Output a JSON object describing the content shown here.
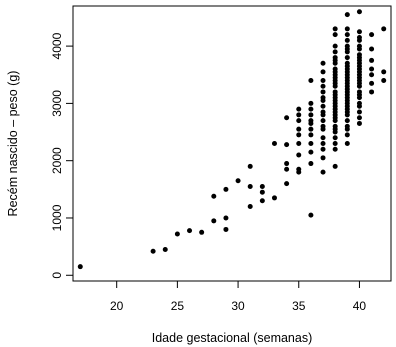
{
  "chart_data": {
    "type": "scatter",
    "title": "",
    "xlabel": "Idade gestacional (semanas)",
    "ylabel": "Recém nascido – peso (g)",
    "xlim": [
      16.4,
      42.6
    ],
    "ylim": [
      -100,
      4700
    ],
    "xticks": [
      20,
      25,
      30,
      35,
      40
    ],
    "yticks": [
      0,
      1000,
      2000,
      3000,
      4000
    ],
    "marker": "filled-circle",
    "marker_color": "#000000",
    "points": [
      [
        17,
        150
      ],
      [
        23,
        420
      ],
      [
        24,
        450
      ],
      [
        25,
        720
      ],
      [
        26,
        780
      ],
      [
        27,
        750
      ],
      [
        28,
        950
      ],
      [
        28,
        1380
      ],
      [
        29,
        800
      ],
      [
        29,
        1000
      ],
      [
        29,
        1500
      ],
      [
        30,
        1650
      ],
      [
        31,
        1200
      ],
      [
        31,
        1550
      ],
      [
        31,
        1900
      ],
      [
        32,
        1300
      ],
      [
        32,
        1450
      ],
      [
        32,
        1550
      ],
      [
        33,
        1350
      ],
      [
        33,
        2300
      ],
      [
        34,
        1950
      ],
      [
        34,
        1850
      ],
      [
        34,
        2280
      ],
      [
        34,
        2750
      ],
      [
        34,
        1600
      ],
      [
        35,
        1800
      ],
      [
        35,
        1850
      ],
      [
        35,
        2100
      ],
      [
        35,
        2300
      ],
      [
        35,
        2450
      ],
      [
        35,
        2550
      ],
      [
        35,
        2700
      ],
      [
        35,
        2800
      ],
      [
        35,
        2900
      ],
      [
        36,
        1050
      ],
      [
        36,
        1950
      ],
      [
        36,
        2150
      ],
      [
        36,
        2300
      ],
      [
        36,
        2450
      ],
      [
        36,
        2550
      ],
      [
        36,
        2650
      ],
      [
        36,
        2700
      ],
      [
        36,
        2800
      ],
      [
        36,
        2900
      ],
      [
        36,
        3000
      ],
      [
        36,
        3400
      ],
      [
        37,
        1800
      ],
      [
        37,
        2050
      ],
      [
        37,
        2200
      ],
      [
        37,
        2300
      ],
      [
        37,
        2400
      ],
      [
        37,
        2550
      ],
      [
        37,
        2600
      ],
      [
        37,
        2700
      ],
      [
        37,
        2800
      ],
      [
        37,
        2850
      ],
      [
        37,
        2950
      ],
      [
        37,
        3050
      ],
      [
        37,
        3100
      ],
      [
        37,
        3200
      ],
      [
        37,
        3300
      ],
      [
        37,
        3400
      ],
      [
        37,
        3550
      ],
      [
        37,
        3700
      ],
      [
        38,
        1900
      ],
      [
        38,
        2200
      ],
      [
        38,
        2300
      ],
      [
        38,
        2400
      ],
      [
        38,
        2500
      ],
      [
        38,
        2550
      ],
      [
        38,
        2600
      ],
      [
        38,
        2700
      ],
      [
        38,
        2750
      ],
      [
        38,
        2800
      ],
      [
        38,
        2850
      ],
      [
        38,
        2900
      ],
      [
        38,
        2950
      ],
      [
        38,
        3000
      ],
      [
        38,
        3050
      ],
      [
        38,
        3100
      ],
      [
        38,
        3150
      ],
      [
        38,
        3200
      ],
      [
        38,
        3300
      ],
      [
        38,
        3350
      ],
      [
        38,
        3400
      ],
      [
        38,
        3450
      ],
      [
        38,
        3500
      ],
      [
        38,
        3550
      ],
      [
        38,
        3600
      ],
      [
        38,
        3700
      ],
      [
        38,
        3750
      ],
      [
        38,
        3800
      ],
      [
        38,
        3900
      ],
      [
        38,
        4000
      ],
      [
        38,
        4200
      ],
      [
        38,
        4300
      ],
      [
        39,
        2300
      ],
      [
        39,
        2450
      ],
      [
        39,
        2550
      ],
      [
        39,
        2600
      ],
      [
        39,
        2700
      ],
      [
        39,
        2800
      ],
      [
        39,
        2850
      ],
      [
        39,
        2900
      ],
      [
        39,
        2950
      ],
      [
        39,
        3000
      ],
      [
        39,
        3050
      ],
      [
        39,
        3100
      ],
      [
        39,
        3150
      ],
      [
        39,
        3200
      ],
      [
        39,
        3250
      ],
      [
        39,
        3300
      ],
      [
        39,
        3350
      ],
      [
        39,
        3400
      ],
      [
        39,
        3450
      ],
      [
        39,
        3500
      ],
      [
        39,
        3550
      ],
      [
        39,
        3600
      ],
      [
        39,
        3650
      ],
      [
        39,
        3700
      ],
      [
        39,
        3800
      ],
      [
        39,
        3900
      ],
      [
        39,
        3950
      ],
      [
        39,
        4000
      ],
      [
        39,
        4100
      ],
      [
        39,
        4200
      ],
      [
        39,
        4300
      ],
      [
        39,
        4550
      ],
      [
        40,
        2650
      ],
      [
        40,
        2750
      ],
      [
        40,
        2850
      ],
      [
        40,
        2950
      ],
      [
        40,
        3000
      ],
      [
        40,
        3100
      ],
      [
        40,
        3150
      ],
      [
        40,
        3200
      ],
      [
        40,
        3300
      ],
      [
        40,
        3350
      ],
      [
        40,
        3400
      ],
      [
        40,
        3450
      ],
      [
        40,
        3500
      ],
      [
        40,
        3550
      ],
      [
        40,
        3600
      ],
      [
        40,
        3650
      ],
      [
        40,
        3700
      ],
      [
        40,
        3750
      ],
      [
        40,
        3800
      ],
      [
        40,
        3850
      ],
      [
        40,
        3950
      ],
      [
        40,
        4000
      ],
      [
        40,
        4100
      ],
      [
        40,
        4150
      ],
      [
        40,
        4250
      ],
      [
        40,
        4600
      ],
      [
        41,
        3200
      ],
      [
        41,
        3350
      ],
      [
        41,
        3500
      ],
      [
        41,
        3600
      ],
      [
        41,
        3750
      ],
      [
        41,
        3950
      ],
      [
        41,
        4200
      ],
      [
        42,
        3400
      ],
      [
        42,
        3550
      ],
      [
        42,
        4300
      ]
    ]
  }
}
